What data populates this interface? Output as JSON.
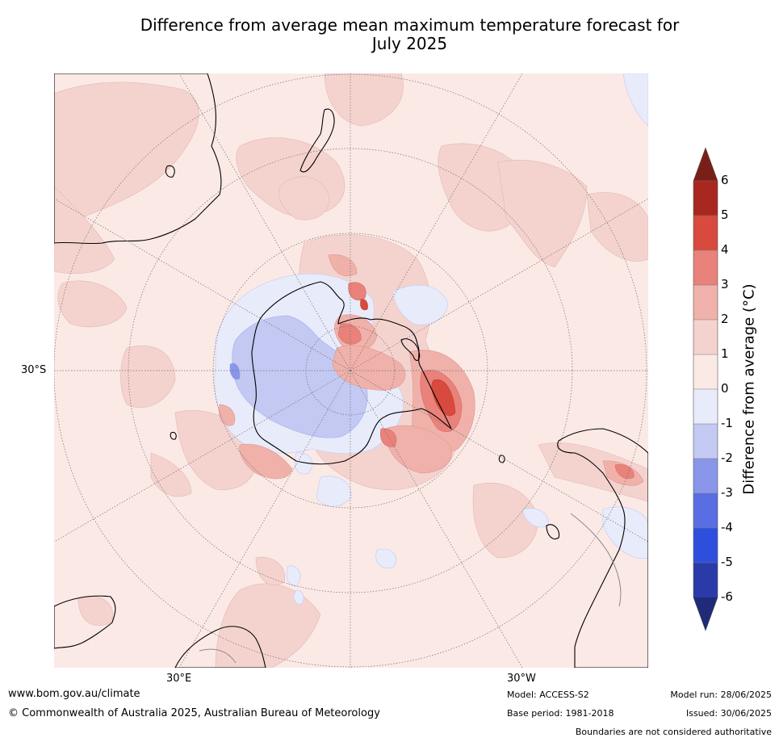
{
  "title": {
    "line1": "Difference from average mean maximum temperature forecast for",
    "line2": "July 2025"
  },
  "map": {
    "projection": "south polar stereographic",
    "graticule_labels": {
      "lat": "30°S",
      "lon_left": "30°E",
      "lon_right": "30°W"
    },
    "background_anomaly_band": "0 to 1",
    "features": [
      {
        "region": "Antarctica interior (East Antarctica)",
        "band": "-1 to -2"
      },
      {
        "region": "Antarctic coast ring",
        "band": "0 to -1"
      },
      {
        "region": "Antarctic Peninsula / Weddell Sea",
        "band": "2 to 5"
      },
      {
        "region": "Southern Ocean south of Africa",
        "band": "1 to 3"
      },
      {
        "region": "South America (Patagonia)",
        "band": "0 to 2"
      }
    ]
  },
  "colorbar": {
    "label": "Difference from average ($^\\circ$C)",
    "label_display": "Difference from average (°C)",
    "ticks": [
      "6",
      "5",
      "4",
      "3",
      "2",
      "1",
      "0",
      "-1",
      "-2",
      "-3",
      "-4",
      "-5",
      "-6"
    ],
    "bands": [
      {
        "range": "above 6",
        "color": "#7a1f17"
      },
      {
        "range": "5 to 6",
        "color": "#a8271f"
      },
      {
        "range": "4 to 5",
        "color": "#d74a3d"
      },
      {
        "range": "3 to 4",
        "color": "#e8827a"
      },
      {
        "range": "2 to 3",
        "color": "#efb1aa"
      },
      {
        "range": "1 to 2",
        "color": "#f4d3cf"
      },
      {
        "range": "0 to 1",
        "color": "#fbe9e6"
      },
      {
        "range": "-1 to 0",
        "color": "#e8ebfa"
      },
      {
        "range": "-2 to -1",
        "color": "#c3c9f2"
      },
      {
        "range": "-3 to -2",
        "color": "#8996ea"
      },
      {
        "range": "-4 to -3",
        "color": "#5a6ee3"
      },
      {
        "range": "-5 to -4",
        "color": "#2e4fdd"
      },
      {
        "range": "-6 to -5",
        "color": "#2a3aa8"
      },
      {
        "range": "below -6",
        "color": "#1f2a78"
      }
    ]
  },
  "footer": {
    "url": "www.bom.gov.au/climate",
    "copyright": "© Commonwealth of Australia 2025, Australian Bureau of Meteorology",
    "model": "Model: ACCESS-S2",
    "base_period": "Base period: 1981-2018",
    "model_run": "Model run: 28/06/2025",
    "issued": "Issued: 30/06/2025",
    "disclaimer": "Boundaries are not considered authoritative"
  }
}
